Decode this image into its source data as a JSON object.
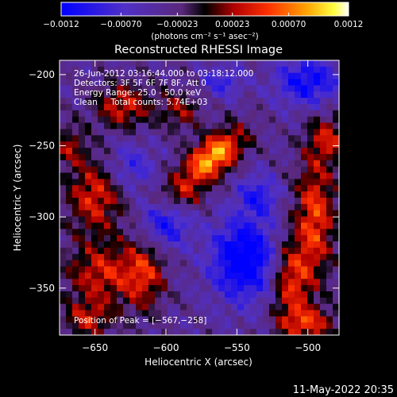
{
  "chart_data": {
    "type": "heatmap",
    "title": "Reconstructed RHESSI Image",
    "xlabel": "Heliocentric X (arcsec)",
    "ylabel": "Heliocentric Y (arcsec)",
    "xlim": [
      -675,
      -478
    ],
    "ylim": [
      -383,
      -190
    ],
    "x_ticks": [
      -650,
      -600,
      -550,
      -500
    ],
    "y_ticks": [
      -350,
      -300,
      -250,
      -200
    ],
    "x_tick_labels": [
      "−650",
      "−600",
      "−550",
      "−500"
    ],
    "y_tick_labels": [
      "−350",
      "−300",
      "−250",
      "−200"
    ],
    "colorbar": {
      "range": [
        -0.0012,
        0.0012
      ],
      "ticks": [
        -0.0012,
        -0.0007,
        -0.00023,
        0.00023,
        0.0007,
        0.0012
      ],
      "tick_labels": [
        "−0.0012",
        "−0.00070",
        "−0.00023",
        "0.00023",
        "0.00070",
        "0.0012"
      ],
      "unit_label": "(photons cm⁻² s⁻¹ asec⁻²)"
    },
    "annotations": [
      "26-Jun-2012 03:16:44.000 to 03:18:12.000",
      "Detectors: 3F 5F 6F 7F 8F, Att 0",
      "Energy Range: 25.0 - 50.0 keV",
      "Clean     Total counts: 5.74E+03"
    ],
    "peak_label": "Position of Peak = [−567,−258]",
    "peak": {
      "x": -567,
      "y": -258
    },
    "blobs": [
      {
        "x": -567,
        "y": -258,
        "sx": 18,
        "sy": 9,
        "rot": -40,
        "amp": 0.00125
      },
      {
        "x": -495,
        "y": -300,
        "sx": 10,
        "sy": 30,
        "rot": 0,
        "amp": 0.00085
      },
      {
        "x": -512,
        "y": -345,
        "sx": 10,
        "sy": 20,
        "rot": 0,
        "amp": 0.0008
      },
      {
        "x": -650,
        "y": -285,
        "sx": 14,
        "sy": 18,
        "rot": 0,
        "amp": 0.00075
      },
      {
        "x": -645,
        "y": -340,
        "sx": 18,
        "sy": 16,
        "rot": 0,
        "amp": 0.0007
      },
      {
        "x": -615,
        "y": -340,
        "sx": 10,
        "sy": 18,
        "rot": 0,
        "amp": 0.00065
      },
      {
        "x": -630,
        "y": -222,
        "sx": 14,
        "sy": 11,
        "rot": 0,
        "amp": 0.0007
      },
      {
        "x": -485,
        "y": -245,
        "sx": 10,
        "sy": 12,
        "rot": 0,
        "amp": 0.0006
      },
      {
        "x": -500,
        "y": -375,
        "sx": 14,
        "sy": 8,
        "rot": 0,
        "amp": 0.0007
      },
      {
        "x": -590,
        "y": -225,
        "sx": 10,
        "sy": 10,
        "rot": 0,
        "amp": 0.0005
      },
      {
        "x": -590,
        "y": -285,
        "sx": 12,
        "sy": 9,
        "rot": 0,
        "amp": 0.00045
      },
      {
        "x": -655,
        "y": -372,
        "sx": 12,
        "sy": 9,
        "rot": 0,
        "amp": 0.0006
      },
      {
        "x": -668,
        "y": -250,
        "sx": 8,
        "sy": 10,
        "rot": 0,
        "amp": 0.0005
      },
      {
        "x": -545,
        "y": -330,
        "sx": 16,
        "sy": 20,
        "rot": 0,
        "amp": -0.0011
      },
      {
        "x": -500,
        "y": -205,
        "sx": 16,
        "sy": 12,
        "rot": 0,
        "amp": -0.0008
      },
      {
        "x": -600,
        "y": -305,
        "sx": 12,
        "sy": 12,
        "rot": 0,
        "amp": -0.0007
      },
      {
        "x": -560,
        "y": -205,
        "sx": 10,
        "sy": 8,
        "rot": 0,
        "amp": -0.0005
      },
      {
        "x": -625,
        "y": -265,
        "sx": 12,
        "sy": 12,
        "rot": 0,
        "amp": -0.0005
      },
      {
        "x": -535,
        "y": -285,
        "sx": 10,
        "sy": 10,
        "rot": 0,
        "amp": -0.0006
      }
    ],
    "grid": false
  },
  "footer": {
    "date_stamp": "11-May-2022 20:35"
  }
}
